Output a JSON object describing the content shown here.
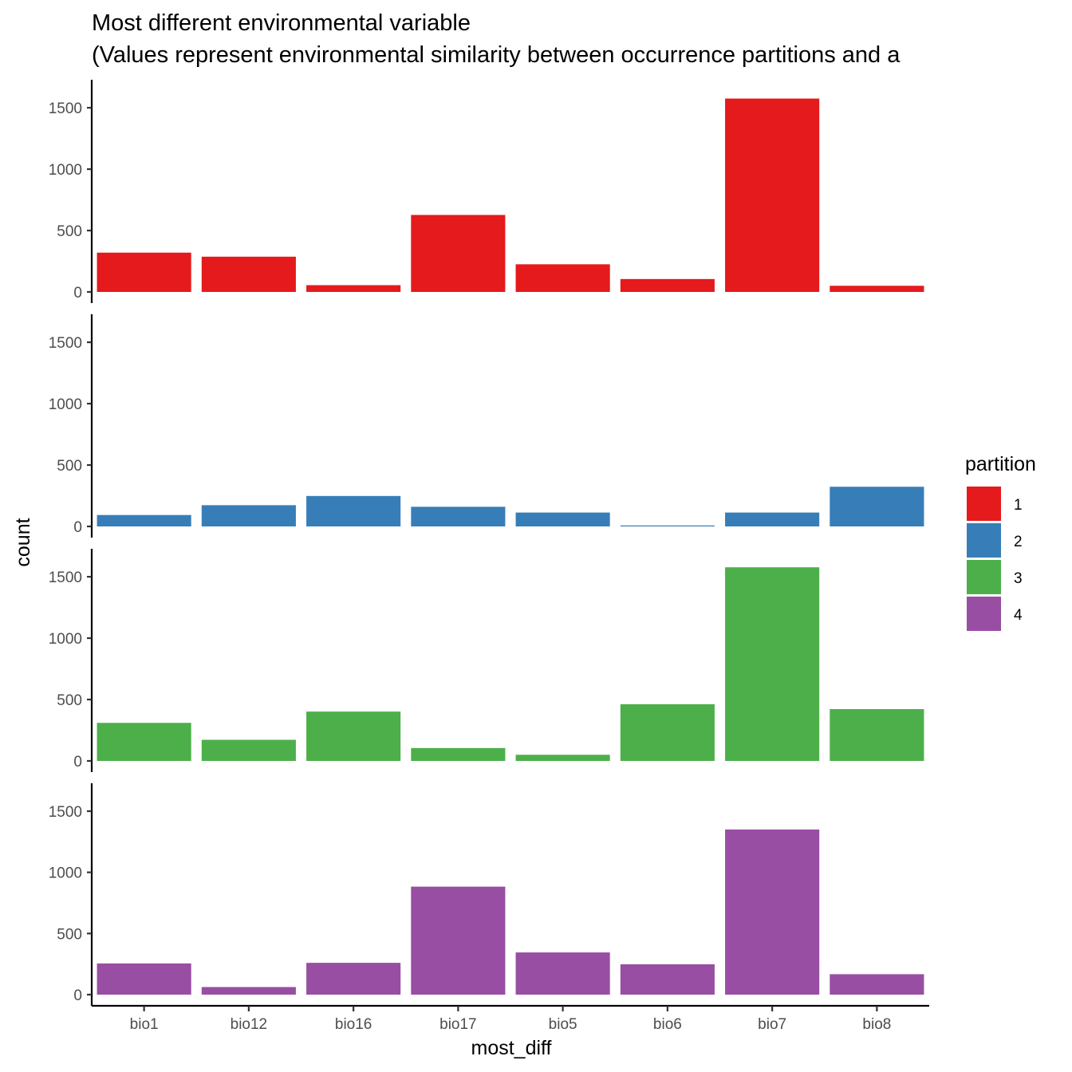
{
  "chart_data": {
    "type": "bar",
    "layout": "faceted-vertical",
    "title": "Most different environmental variable",
    "subtitle": "(Values represent environmental similarity between occurrence partitions and a",
    "xlabel": "most_diff",
    "ylabel": "count",
    "categories": [
      "bio1",
      "bio12",
      "bio16",
      "bio17",
      "bio5",
      "bio6",
      "bio7",
      "bio8"
    ],
    "ylim": [
      0,
      1650
    ],
    "yticks": [
      0,
      500,
      1000,
      1500
    ],
    "grid": false,
    "legend": {
      "title": "partition",
      "placement": "right"
    },
    "series": [
      {
        "name": "1",
        "color": "#E41A1C",
        "values": [
          320,
          287,
          55,
          627,
          225,
          105,
          1575,
          50
        ]
      },
      {
        "name": "2",
        "color": "#377EB8",
        "values": [
          93,
          173,
          248,
          160,
          113,
          8,
          113,
          323
        ]
      },
      {
        "name": "3",
        "color": "#4DAF4A",
        "values": [
          310,
          172,
          402,
          105,
          50,
          462,
          1577,
          422
        ]
      },
      {
        "name": "4",
        "color": "#984EA3",
        "values": [
          255,
          62,
          260,
          883,
          345,
          248,
          1350,
          167
        ]
      }
    ]
  }
}
